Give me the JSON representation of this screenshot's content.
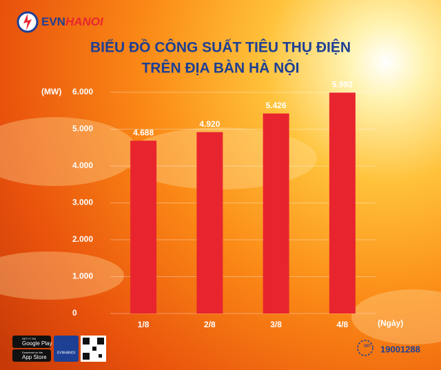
{
  "brand": {
    "evn": "EVN",
    "hanoi": "HANOI"
  },
  "chart_data": {
    "type": "bar",
    "title": [
      "BIỂU ĐỒ CÔNG SUẤT TIÊU THỤ ĐIỆN",
      "TRÊN ĐỊA BÀN HÀ NỘI"
    ],
    "y_label": "(MW)",
    "x_label": "(Ngày)",
    "categories": [
      "1/8",
      "2/8",
      "3/8",
      "4/8"
    ],
    "values": [
      4688,
      4920,
      5426,
      5992
    ],
    "value_labels": [
      "4.688",
      "4.920",
      "5.426",
      "5.992"
    ],
    "color": "#e8252e",
    "ylim": [
      0,
      6000
    ],
    "yticks": [
      0,
      {
        "value": 1000,
        "label": "1.000"
      },
      {
        "value": 2000,
        "label": "2.000"
      },
      {
        "value": 3000,
        "label": "3.000"
      },
      {
        "value": 4000,
        "label": "4.000"
      },
      {
        "value": 5000,
        "label": "5.000"
      },
      {
        "value": 6000,
        "label": "6.000"
      }
    ],
    "grid": true
  },
  "footer": {
    "google_small": "GET IT ON",
    "google": "Google Play",
    "apple_small": "Download on the",
    "apple": "App Store",
    "app_name": "EVNHANOI",
    "hours": "24/7",
    "hotline": "19001288"
  }
}
